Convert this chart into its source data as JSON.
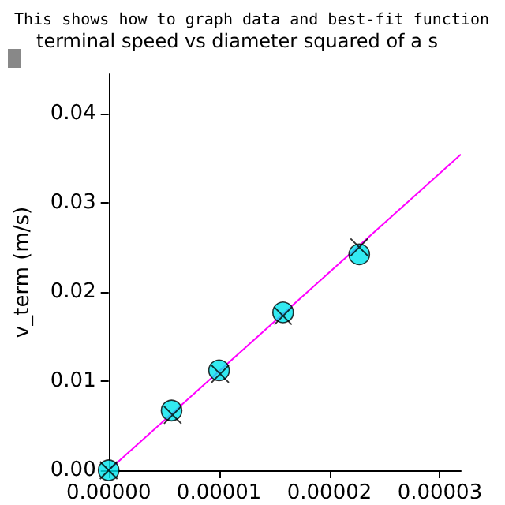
{
  "chart_data": {
    "type": "scatter",
    "title": "terminal speed vs diameter squared of a s",
    "ylabel": "v_term (m/s)",
    "annotations": [
      "This shows how to graph data and best-fit function"
    ],
    "xlim": [
      0,
      3.19e-05
    ],
    "ylim": [
      0,
      0.0444
    ],
    "xticks": [
      {
        "value": 0,
        "label": "0.00000"
      },
      {
        "value": 1e-05,
        "label": "0.00001"
      },
      {
        "value": 2e-05,
        "label": "0.00002"
      },
      {
        "value": 3e-05,
        "label": "0.00003"
      }
    ],
    "yticks": [
      {
        "value": 0,
        "label": "0.00"
      },
      {
        "value": 0.01,
        "label": "0.01"
      },
      {
        "value": 0.02,
        "label": "0.02"
      },
      {
        "value": 0.03,
        "label": "0.03"
      },
      {
        "value": 0.04,
        "label": "0.04"
      }
    ],
    "grid": false,
    "series": [
      {
        "type": "line",
        "color": "#ff00ff",
        "marker": "none",
        "line_style": "solid",
        "x": [
          0,
          3.19e-05
        ],
        "values": [
          0,
          0.0354
        ]
      },
      {
        "color": "#00e5ee",
        "marker": "circle",
        "x": [
          0,
          5.7e-06,
          1e-05,
          1.58e-05,
          2.27e-05
        ],
        "values": [
          0,
          0.0067,
          0.0112,
          0.0177,
          0.0242
        ]
      },
      {
        "color": "#000000",
        "marker": "cross",
        "x": [
          0,
          5.8e-06,
          1.01e-05,
          1.58e-05,
          2.27e-05
        ],
        "values": [
          0,
          0.0062,
          0.0108,
          0.0173,
          0.025
        ]
      }
    ]
  }
}
